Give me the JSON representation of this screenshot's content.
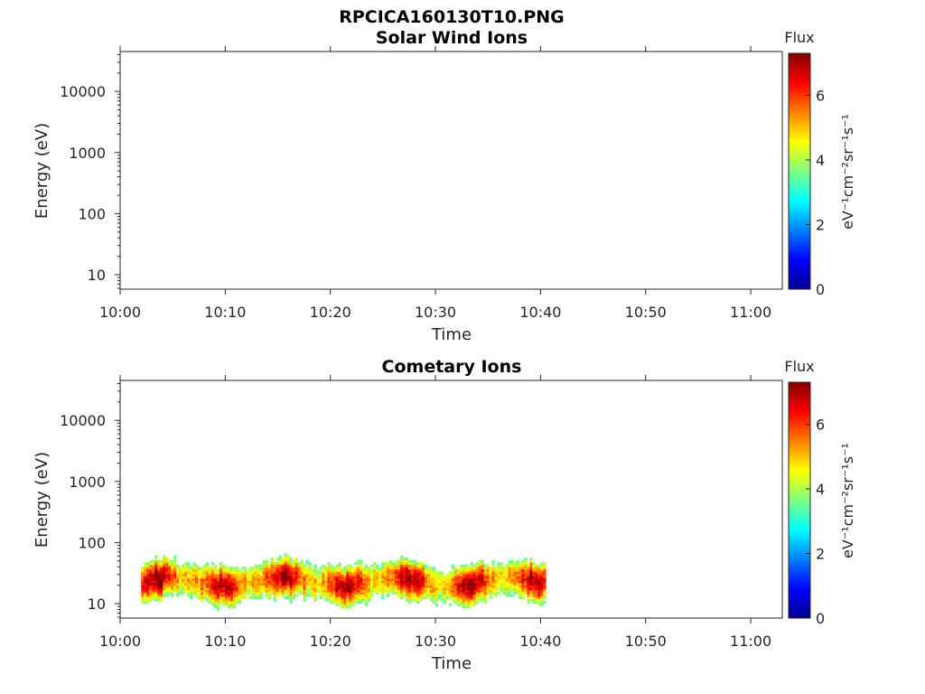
{
  "figure_title": "RPCICA160130T10.PNG",
  "chart_data": [
    {
      "type": "heatmap",
      "title": "Solar Wind Ions",
      "xlabel": "Time",
      "ylabel": "Energy (eV)",
      "y_scale": "log",
      "ylim": [
        5.8,
        45000
      ],
      "xlim": [
        "10:00",
        "11:03"
      ],
      "x_ticks": [
        "10:00",
        "10:10",
        "10:20",
        "10:30",
        "10:40",
        "10:50",
        "11:00"
      ],
      "y_ticks": [
        "10",
        "100",
        "1000",
        "10000"
      ],
      "colorbar": {
        "label": "Flux",
        "unit": "eV⁻¹cm⁻²sr⁻¹s⁻¹",
        "range": [
          0,
          7.3
        ],
        "ticks": [
          "0",
          "2",
          "4",
          "6"
        ],
        "colormap": "jet"
      },
      "data": []
    },
    {
      "type": "heatmap",
      "title": "Cometary Ions",
      "xlabel": "Time",
      "ylabel": "Energy (eV)",
      "y_scale": "log",
      "ylim": [
        5.8,
        45000
      ],
      "xlim": [
        "10:00",
        "11:03"
      ],
      "x_ticks": [
        "10:00",
        "10:10",
        "10:20",
        "10:30",
        "10:40",
        "10:50",
        "11:00"
      ],
      "y_ticks": [
        "10",
        "100",
        "1000",
        "10000"
      ],
      "colorbar": {
        "label": "Flux",
        "unit": "eV⁻¹cm⁻²sr⁻¹s⁻¹",
        "range": [
          0,
          7.3
        ],
        "ticks": [
          "0",
          "2",
          "4",
          "6"
        ],
        "colormap": "jet"
      },
      "data_time_range": [
        "10:02",
        "10:40.5"
      ],
      "data_energy_range": [
        6,
        80
      ],
      "peak_energy_band": [
        15,
        35
      ],
      "peak_flux": 7.0
    }
  ]
}
